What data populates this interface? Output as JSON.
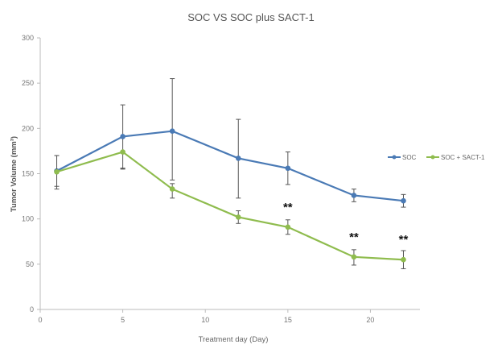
{
  "chart_data": {
    "type": "line",
    "title": "SOC VS SOC plus SACT-1",
    "xlabel": "Treatment day (Day)",
    "ylabel": "Tumor Volume (mm³)",
    "xlim": [
      0,
      23
    ],
    "ylim": [
      0,
      300
    ],
    "xticks": [
      0,
      5,
      10,
      15,
      20
    ],
    "yticks": [
      0,
      50,
      100,
      150,
      200,
      250,
      300
    ],
    "grid": false,
    "legend_position": "right",
    "x": [
      1,
      5,
      8,
      12,
      15,
      19,
      22
    ],
    "series": [
      {
        "name": "SOC",
        "color": "#4a7ab5",
        "values": [
          153,
          191,
          197,
          167,
          156,
          126,
          120
        ],
        "error_upper": [
          170,
          226,
          255,
          210,
          174,
          133,
          127
        ],
        "error_lower": [
          136,
          156,
          143,
          123,
          138,
          119,
          113
        ]
      },
      {
        "name": "SOC + SACT-1",
        "color": "#8fbc4e",
        "values": [
          152,
          174,
          133,
          102,
          91,
          58,
          55
        ],
        "error_upper": [
          170,
          156,
          139,
          109,
          99,
          66,
          65
        ],
        "error_lower": [
          133,
          155,
          123,
          95,
          83,
          49,
          45
        ]
      }
    ],
    "annotations": [
      {
        "x": 15,
        "y": 91,
        "text": "**"
      },
      {
        "x": 19,
        "y": 58,
        "text": "**"
      },
      {
        "x": 22,
        "y": 55,
        "text": "**"
      }
    ]
  }
}
